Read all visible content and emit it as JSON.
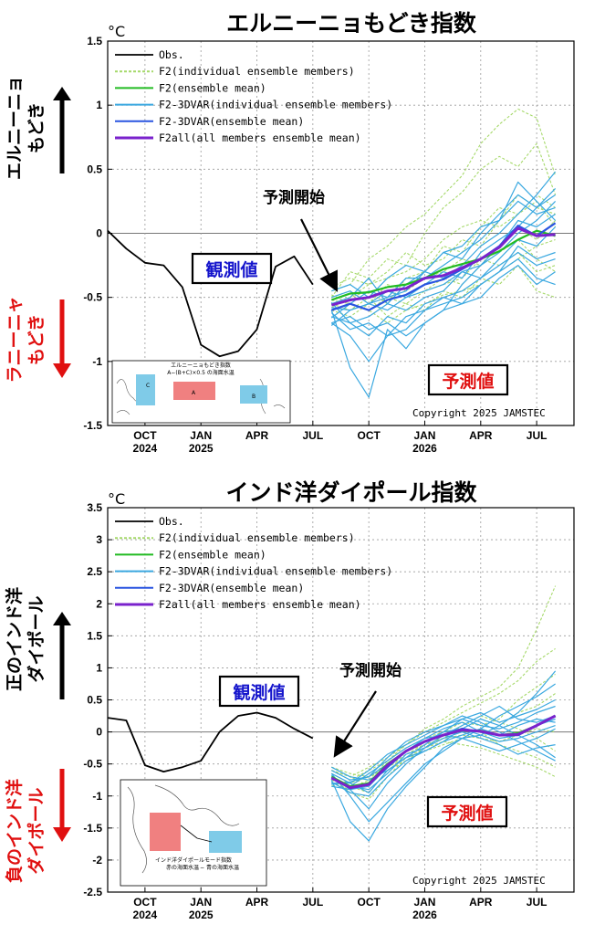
{
  "colors": {
    "obs": "#000000",
    "f2_member": "#a6d96a",
    "f2_mean": "#22bb22",
    "f2_3dvar_member": "#3aa8e0",
    "f2_3dvar_mean": "#2a55e0",
    "f2all_mean": "#7a22cc",
    "obs_badge": "#1515cc",
    "fc_badge": "#e01010",
    "box_A": "#f08080",
    "box_BC": "#7fcbe8"
  },
  "legend": [
    {
      "key": "obs",
      "label": "Obs."
    },
    {
      "key": "f2_member",
      "label": "F2(individual ensemble members)"
    },
    {
      "key": "f2_mean",
      "label": "F2(ensemble mean)"
    },
    {
      "key": "f2_3dvar_member",
      "label": "F2-3DVAR(individual ensemble members)"
    },
    {
      "key": "f2_3dvar_mean",
      "label": "F2-3DVAR(ensemble mean)"
    },
    {
      "key": "f2all_mean",
      "label": "F2all(all members ensemble mean)"
    }
  ],
  "copyright": "Copyright 2025 JAMSTEC",
  "unit": "°C",
  "x_tick_labels": [
    {
      "month": "OCT",
      "year": "2024"
    },
    {
      "month": "JAN",
      "year": "2025"
    },
    {
      "month": "APR",
      "year": ""
    },
    {
      "month": "JUL",
      "year": ""
    },
    {
      "month": "OCT",
      "year": ""
    },
    {
      "month": "JAN",
      "year": "2026"
    },
    {
      "month": "APR",
      "year": ""
    },
    {
      "month": "JUL",
      "year": ""
    }
  ],
  "panels": [
    {
      "title": "エルニーニョもどき指数",
      "side_up": [
        "エルニーニョ",
        "もどき"
      ],
      "side_down": [
        "ラニーニャ",
        "もどき"
      ],
      "obs_label": "観測値",
      "fc_label": "予測値",
      "start_label": "予測開始",
      "inset_title": "エルニーニョもどき指数",
      "inset_formula": "A−(B+C)×0.5 の海面水温",
      "inset_boxes": [
        "A",
        "B",
        "C"
      ]
    },
    {
      "title": "インド洋ダイポール指数",
      "side_up": [
        "正のインド洋",
        "ダイポール"
      ],
      "side_down": [
        "負のインド洋",
        "ダイポール"
      ],
      "obs_label": "観測値",
      "fc_label": "予測値",
      "start_label": "予測開始",
      "inset_title": "インド洋ダイポールモード指数",
      "inset_formula_red": "赤の海面水温",
      "inset_formula_blue": "青の海面水温",
      "inset_formula_sep": "−"
    }
  ],
  "chart_data": [
    {
      "type": "line",
      "title": "エルニーニョもどき指数",
      "ylabel": "°C",
      "ylim": [
        -1.5,
        1.5
      ],
      "yticks": [
        -1.5,
        -1,
        -0.5,
        0,
        0.5,
        1,
        1.5
      ],
      "xlim": [
        0,
        25
      ],
      "grid": true,
      "legend_position": "top-left",
      "obs": {
        "x": [
          0,
          1,
          2,
          3,
          4,
          5,
          6,
          7,
          8,
          9,
          10,
          11
        ],
        "y": [
          0.02,
          -0.12,
          -0.23,
          -0.25,
          -0.42,
          -0.87,
          -0.96,
          -0.92,
          -0.75,
          -0.26,
          -0.18,
          -0.4
        ]
      },
      "forecast_x": [
        12,
        13,
        14,
        15,
        16,
        17,
        18,
        19,
        20,
        21,
        22,
        23,
        24
      ],
      "series": [
        {
          "name": "F2(ensemble mean)",
          "key": "f2_mean",
          "y": [
            -0.52,
            -0.47,
            -0.46,
            -0.42,
            -0.4,
            -0.35,
            -0.28,
            -0.24,
            -0.2,
            -0.14,
            -0.05,
            0.02,
            -0.02
          ]
        },
        {
          "name": "F2-3DVAR(ensemble mean)",
          "key": "f2_3dvar_mean",
          "y": [
            -0.6,
            -0.55,
            -0.6,
            -0.52,
            -0.48,
            -0.4,
            -0.36,
            -0.28,
            -0.2,
            -0.1,
            0.06,
            -0.02,
            0.08
          ]
        },
        {
          "name": "F2all(all members ensemble mean)",
          "key": "f2all_mean",
          "y": [
            -0.56,
            -0.52,
            -0.5,
            -0.45,
            -0.43,
            -0.35,
            -0.33,
            -0.27,
            -0.2,
            -0.11,
            0.04,
            -0.02,
            -0.01
          ]
        }
      ],
      "members_f2": [
        [
          -0.45,
          -0.4,
          -0.2,
          -0.1,
          0.05,
          0.15,
          0.3,
          0.45,
          0.7,
          0.85,
          0.97,
          0.9,
          0.45
        ],
        [
          -0.5,
          -0.3,
          -0.35,
          -0.2,
          -0.25,
          0.0,
          0.2,
          0.32,
          0.5,
          0.6,
          0.52,
          0.7,
          0.3
        ],
        [
          -0.55,
          -0.5,
          -0.45,
          -0.55,
          -0.35,
          -0.3,
          -0.1,
          -0.15,
          0.05,
          0.2,
          0.15,
          0.25,
          0.05
        ],
        [
          -0.6,
          -0.65,
          -0.55,
          -0.45,
          -0.5,
          -0.45,
          -0.35,
          -0.4,
          -0.25,
          -0.15,
          -0.05,
          -0.2,
          -0.3
        ],
        [
          -0.48,
          -0.55,
          -0.6,
          -0.7,
          -0.6,
          -0.55,
          -0.48,
          -0.45,
          -0.4,
          -0.3,
          -0.2,
          -0.1,
          -0.05
        ],
        [
          -0.42,
          -0.35,
          -0.4,
          -0.3,
          -0.15,
          -0.25,
          -0.2,
          -0.05,
          -0.1,
          0.1,
          0.3,
          0.2,
          0.15
        ],
        [
          -0.55,
          -0.6,
          -0.5,
          -0.65,
          -0.55,
          -0.6,
          -0.45,
          -0.5,
          -0.35,
          -0.4,
          -0.25,
          -0.45,
          -0.5
        ],
        [
          -0.5,
          -0.45,
          -0.55,
          -0.4,
          -0.45,
          -0.35,
          -0.3,
          -0.2,
          -0.25,
          -0.1,
          0.05,
          -0.05,
          0.1
        ],
        [
          -0.58,
          -0.5,
          -0.4,
          -0.35,
          -0.3,
          -0.2,
          -0.05,
          0.05,
          0.1,
          0.05,
          0.15,
          0.3,
          0.2
        ],
        [
          -0.52,
          -0.55,
          -0.6,
          -0.5,
          -0.55,
          -0.45,
          -0.4,
          -0.35,
          -0.2,
          -0.25,
          -0.15,
          -0.3,
          -0.25
        ]
      ],
      "members_f2_3dvar": [
        [
          -0.7,
          -0.8,
          -1.0,
          -0.8,
          -0.75,
          -0.6,
          -0.55,
          -0.5,
          -0.4,
          -0.3,
          -0.1,
          -0.2,
          -0.15
        ],
        [
          -0.6,
          -1.05,
          -1.28,
          -0.75,
          -0.9,
          -0.7,
          -0.6,
          -0.4,
          -0.25,
          -0.15,
          0.0,
          0.1,
          0.25
        ],
        [
          -0.55,
          -0.5,
          -0.35,
          -0.55,
          -0.4,
          -0.3,
          -0.15,
          -0.2,
          0.0,
          0.15,
          0.3,
          0.2,
          0.35
        ],
        [
          -0.65,
          -0.7,
          -0.65,
          -0.55,
          -0.6,
          -0.5,
          -0.45,
          -0.3,
          -0.35,
          -0.2,
          -0.05,
          -0.1,
          0.05
        ],
        [
          -0.5,
          -0.45,
          -0.55,
          -0.5,
          -0.45,
          -0.3,
          -0.35,
          -0.25,
          -0.1,
          0.0,
          0.15,
          0.3,
          0.48
        ],
        [
          -0.62,
          -0.75,
          -0.7,
          -0.8,
          -0.65,
          -0.6,
          -0.5,
          -0.55,
          -0.4,
          -0.3,
          -0.2,
          -0.35,
          -0.4
        ],
        [
          -0.45,
          -0.4,
          -0.5,
          -0.35,
          -0.25,
          -0.3,
          -0.15,
          -0.1,
          0.05,
          0.1,
          0.25,
          0.15,
          0.2
        ],
        [
          -0.7,
          -0.65,
          -0.75,
          -0.7,
          -0.8,
          -0.7,
          -0.6,
          -0.55,
          -0.5,
          -0.35,
          -0.25,
          -0.4,
          -0.3
        ],
        [
          -0.58,
          -0.6,
          -0.55,
          -0.6,
          -0.5,
          -0.45,
          -0.4,
          -0.3,
          -0.25,
          -0.1,
          0.1,
          0.05,
          0.15
        ],
        [
          -0.66,
          -0.55,
          -0.45,
          -0.5,
          -0.35,
          -0.35,
          -0.25,
          -0.15,
          -0.05,
          0.1,
          0.4,
          0.25,
          0.1
        ],
        [
          -0.54,
          -0.7,
          -0.8,
          -0.65,
          -0.7,
          -0.55,
          -0.5,
          -0.45,
          -0.35,
          -0.25,
          -0.15,
          -0.25,
          -0.2
        ],
        [
          -0.72,
          -0.6,
          -0.55,
          -0.45,
          -0.5,
          -0.4,
          -0.3,
          -0.35,
          -0.15,
          -0.05,
          0.05,
          0.2,
          0.3
        ]
      ]
    },
    {
      "type": "line",
      "title": "インド洋ダイポール指数",
      "ylabel": "°C",
      "ylim": [
        -2.5,
        3.5
      ],
      "yticks": [
        -2.5,
        -2,
        -1.5,
        -1,
        -0.5,
        0,
        0.5,
        1,
        1.5,
        2,
        2.5,
        3,
        3.5
      ],
      "xlim": [
        0,
        25
      ],
      "grid": true,
      "legend_position": "top-left",
      "obs": {
        "x": [
          0,
          1,
          2,
          3,
          4,
          5,
          6,
          7,
          8,
          9,
          10,
          11
        ],
        "y": [
          0.22,
          0.18,
          -0.52,
          -0.62,
          -0.55,
          -0.45,
          0.0,
          0.25,
          0.3,
          0.22,
          0.05,
          -0.1
        ]
      },
      "forecast_x": [
        12,
        13,
        14,
        15,
        16,
        17,
        18,
        19,
        20,
        21,
        22,
        23,
        24
      ],
      "series": [
        {
          "name": "F2(ensemble mean)",
          "key": "f2_mean",
          "y": [
            -0.7,
            -0.85,
            -0.8,
            -0.5,
            -0.3,
            -0.15,
            -0.05,
            0.02,
            0.02,
            -0.05,
            -0.02,
            0.1,
            0.25
          ]
        },
        {
          "name": "F2-3DVAR(ensemble mean)",
          "key": "f2_3dvar_mean",
          "y": [
            -0.72,
            -0.88,
            -0.82,
            -0.55,
            -0.3,
            -0.15,
            -0.05,
            0.05,
            0.0,
            -0.05,
            -0.05,
            0.1,
            0.25
          ]
        },
        {
          "name": "F2all(all members ensemble mean)",
          "key": "f2all_mean",
          "y": [
            -0.72,
            -0.87,
            -0.82,
            -0.52,
            -0.3,
            -0.15,
            -0.05,
            0.03,
            0.01,
            -0.05,
            -0.04,
            0.1,
            0.25
          ]
        }
      ],
      "members_f2": [
        [
          -0.6,
          -0.7,
          -0.55,
          -0.4,
          -0.2,
          0.05,
          0.2,
          0.4,
          0.55,
          0.7,
          1.0,
          1.6,
          2.28
        ],
        [
          -0.8,
          -0.9,
          -0.75,
          -0.45,
          -0.2,
          0.0,
          0.15,
          0.3,
          0.45,
          0.6,
          0.8,
          1.1,
          1.3
        ],
        [
          -0.55,
          -0.65,
          -0.7,
          -0.55,
          -0.4,
          -0.3,
          -0.2,
          -0.1,
          -0.05,
          0.1,
          0.3,
          0.4,
          0.6
        ],
        [
          -0.75,
          -0.85,
          -0.95,
          -0.6,
          -0.45,
          -0.25,
          -0.15,
          -0.2,
          -0.25,
          -0.35,
          -0.45,
          -0.55,
          -0.7
        ],
        [
          -0.65,
          -0.8,
          -0.7,
          -0.5,
          -0.3,
          -0.2,
          -0.1,
          0.1,
          0.25,
          0.15,
          0.05,
          -0.1,
          -0.3
        ],
        [
          -0.7,
          -0.95,
          -1.05,
          -0.7,
          -0.4,
          -0.25,
          -0.05,
          0.05,
          0.0,
          -0.2,
          -0.3,
          -0.4,
          -0.55
        ],
        [
          -0.85,
          -0.75,
          -0.6,
          -0.45,
          -0.25,
          -0.1,
          0.0,
          0.15,
          0.1,
          0.2,
          0.5,
          0.7,
          0.9
        ],
        [
          -0.6,
          -0.7,
          -0.85,
          -0.55,
          -0.35,
          -0.2,
          -0.1,
          -0.05,
          -0.1,
          -0.15,
          -0.05,
          0.05,
          0.0
        ]
      ],
      "members_f2_3dvar": [
        [
          -0.65,
          -1.0,
          -1.4,
          -1.1,
          -0.8,
          -0.5,
          -0.3,
          -0.1,
          -0.05,
          0.1,
          0.3,
          0.6,
          0.95
        ],
        [
          -0.75,
          -1.4,
          -1.7,
          -1.2,
          -0.85,
          -0.55,
          -0.25,
          -0.1,
          0.05,
          0.25,
          0.4,
          0.55,
          0.75
        ],
        [
          -0.7,
          -0.85,
          -0.65,
          -0.45,
          -0.25,
          -0.1,
          0.05,
          0.15,
          0.0,
          -0.1,
          -0.05,
          0.1,
          0.2
        ],
        [
          -0.8,
          -0.8,
          -0.95,
          -0.6,
          -0.4,
          -0.3,
          -0.15,
          0.05,
          0.2,
          0.1,
          -0.05,
          -0.2,
          -0.4
        ],
        [
          -0.6,
          -0.75,
          -0.7,
          -0.4,
          -0.15,
          0.0,
          0.1,
          0.25,
          0.15,
          0.0,
          -0.15,
          -0.3,
          -0.45
        ],
        [
          -0.85,
          -0.9,
          -0.85,
          -0.55,
          -0.3,
          -0.1,
          -0.05,
          -0.1,
          -0.2,
          -0.3,
          -0.2,
          -0.1,
          0.05
        ],
        [
          -0.55,
          -0.7,
          -0.75,
          -0.6,
          -0.4,
          -0.2,
          0.0,
          0.2,
          0.3,
          0.15,
          0.25,
          0.35,
          0.5
        ],
        [
          -0.78,
          -0.95,
          -1.0,
          -0.7,
          -0.45,
          -0.3,
          -0.15,
          -0.05,
          0.05,
          -0.05,
          0.1,
          0.2,
          0.15
        ],
        [
          -0.65,
          -0.8,
          -0.6,
          -0.35,
          -0.2,
          -0.05,
          0.1,
          0.2,
          0.1,
          0.05,
          0.15,
          0.3,
          0.4
        ],
        [
          -0.72,
          -0.85,
          -0.9,
          -0.65,
          -0.35,
          -0.25,
          -0.1,
          0.0,
          -0.1,
          -0.2,
          -0.35,
          -0.25,
          -0.2
        ],
        [
          -0.68,
          -0.9,
          -1.2,
          -0.8,
          -0.5,
          -0.25,
          -0.05,
          0.1,
          0.25,
          0.4,
          0.2,
          0.15,
          0.25
        ],
        [
          -0.82,
          -0.78,
          -0.7,
          -0.5,
          -0.3,
          -0.15,
          0.0,
          0.05,
          -0.05,
          -0.15,
          -0.1,
          0.0,
          0.1
        ]
      ]
    }
  ]
}
